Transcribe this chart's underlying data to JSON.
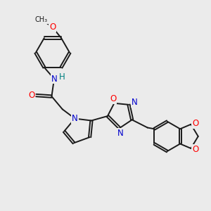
{
  "background_color": "#ebebeb",
  "bond_color": "#1a1a1a",
  "bond_width": 1.4,
  "atom_colors": {
    "N": "#0000cc",
    "O": "#ff0000",
    "H": "#008080",
    "C": "#1a1a1a"
  },
  "font_size_atom": 8.5
}
